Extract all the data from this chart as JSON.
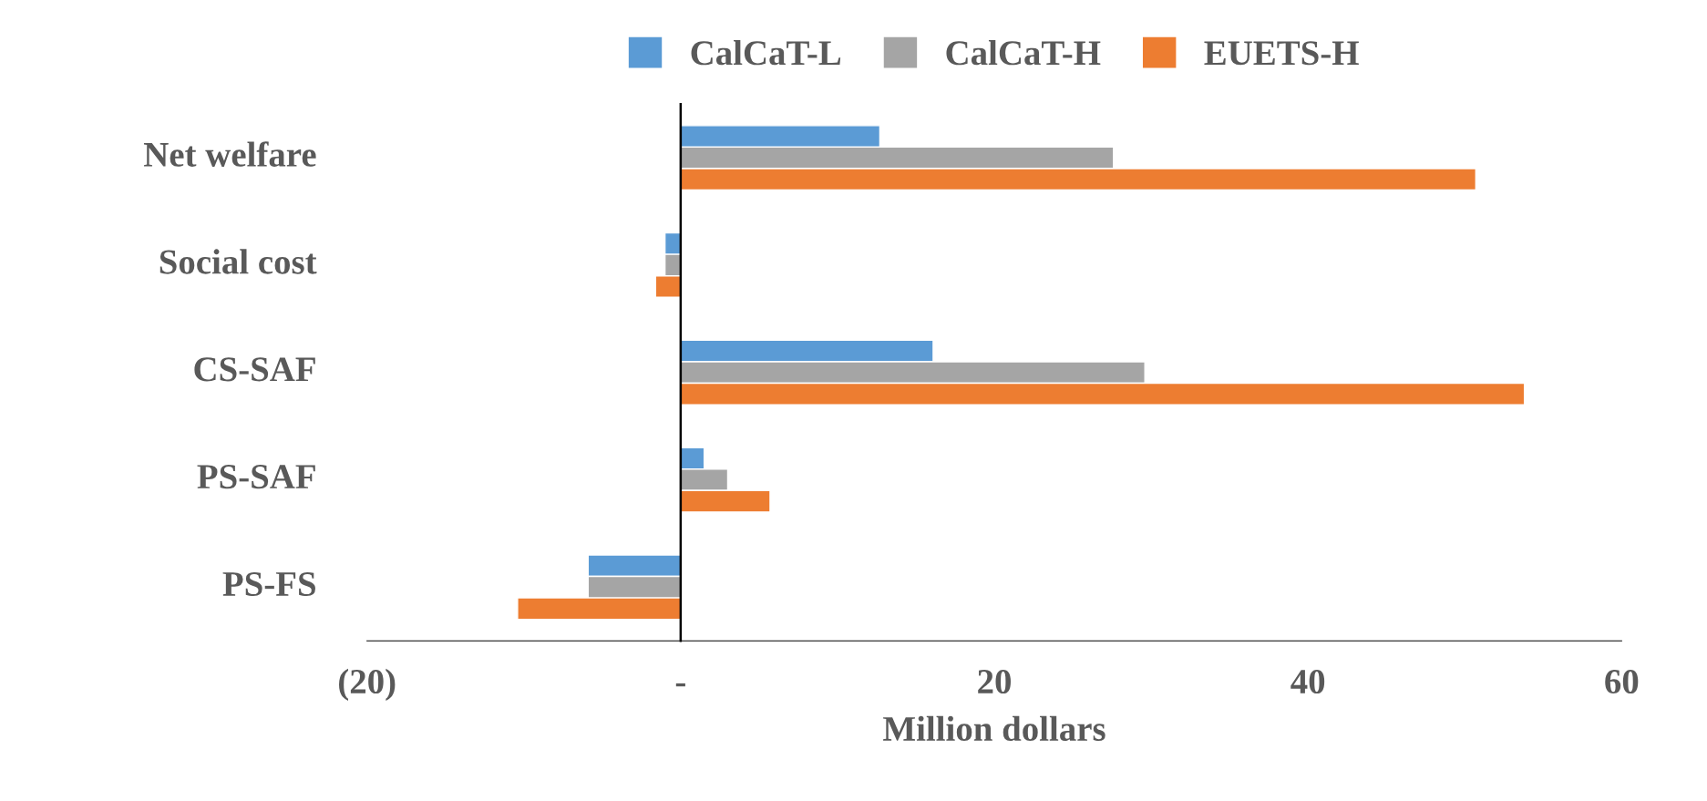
{
  "chart_data": {
    "type": "bar",
    "orientation": "horizontal",
    "xlabel": "Million dollars",
    "categories": [
      "Net welfare",
      "Social cost",
      "CS-SAF",
      "PS-SAF",
      "PS-FS"
    ],
    "series": [
      {
        "name": "CalCaT-L",
        "color": "#5b9bd5",
        "values": [
          12.7,
          -1.0,
          16.1,
          1.5,
          -5.9
        ]
      },
      {
        "name": "CalCaT-H",
        "color": "#a5a5a5",
        "values": [
          27.6,
          -1.0,
          29.6,
          3.0,
          -5.9
        ]
      },
      {
        "name": "EUETS-H",
        "color": "#ed7d31",
        "values": [
          50.7,
          -1.6,
          53.8,
          5.7,
          -10.4
        ]
      }
    ],
    "xlim": [
      -20,
      60
    ],
    "xticks": [
      {
        "value": -20,
        "label": "(20)"
      },
      {
        "value": 0,
        "label": "-"
      },
      20,
      40,
      60
    ],
    "legend": "top"
  }
}
